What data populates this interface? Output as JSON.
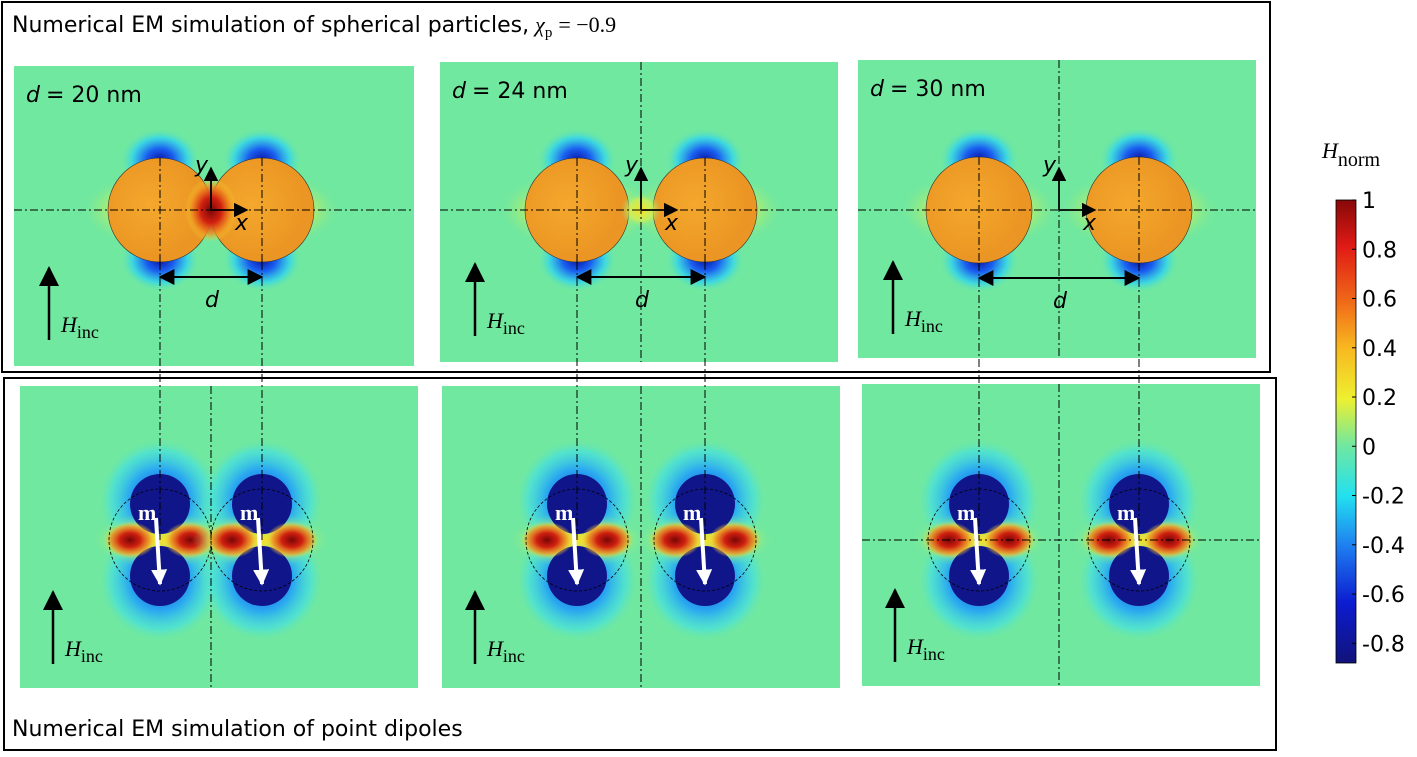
{
  "top_section": {
    "title": "Numerical EM simulation of spherical particles,",
    "chi": "χ",
    "chi_sub": "p",
    "chi_value": "= −0.9",
    "panels": [
      {
        "var": "d",
        "label": "= 20 nm"
      },
      {
        "var": "d",
        "label": "= 24 nm"
      },
      {
        "var": "d",
        "label": "= 30 nm"
      }
    ]
  },
  "bottom_section": {
    "title": "Numerical EM simulation of point dipoles"
  },
  "labels": {
    "x": "x",
    "y": "y",
    "d": "d",
    "h": "H",
    "h_sub": "inc",
    "m": "m"
  },
  "colorbar": {
    "title": "H",
    "title_sub": "norm",
    "range": [
      -0.88,
      1
    ],
    "ticks": [
      1,
      0.8,
      0.6,
      0.4,
      0.2,
      0,
      -0.2,
      -0.4,
      -0.6,
      -0.8
    ]
  }
}
